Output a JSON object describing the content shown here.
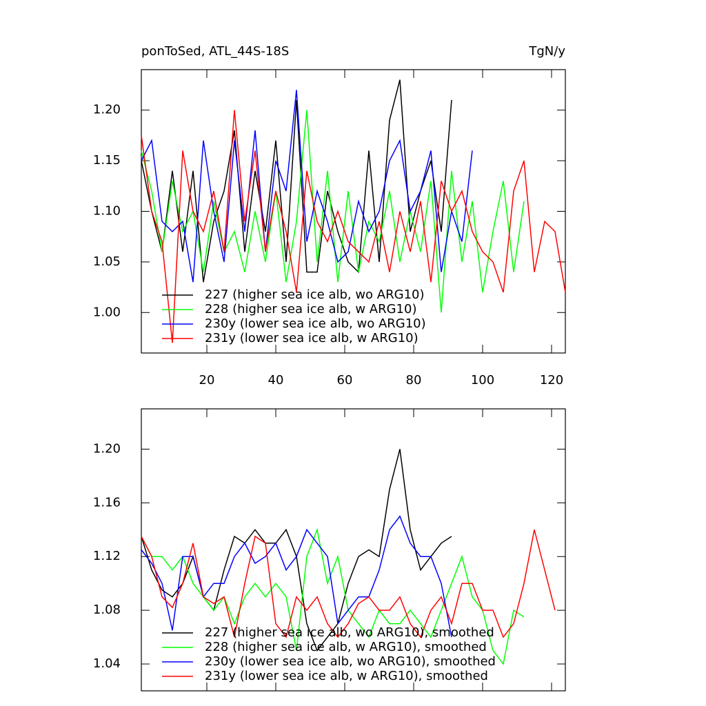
{
  "chart_data": [
    {
      "type": "line",
      "title": "ponToSed, ATL_44S-18S",
      "unit_label": "TgN/y",
      "x": [
        1,
        4,
        7,
        10,
        13,
        16,
        19,
        22,
        25,
        28,
        31,
        34,
        37,
        40,
        43,
        46,
        49,
        52,
        55,
        58,
        61,
        64,
        67,
        70,
        73,
        76,
        79,
        82,
        85,
        88,
        91,
        94,
        97,
        100,
        103,
        106,
        109,
        112,
        115,
        118,
        121,
        124
      ],
      "series": [
        {
          "name": "227 (higher sea ice alb, wo ARG10)",
          "color": "#000000",
          "values": [
            1.15,
            1.1,
            1.06,
            1.14,
            1.06,
            1.14,
            1.03,
            1.09,
            1.12,
            1.18,
            1.06,
            1.14,
            1.08,
            1.17,
            1.05,
            1.21,
            1.04,
            1.04,
            1.12,
            1.08,
            1.05,
            1.04,
            1.16,
            1.05,
            1.19,
            1.23,
            1.08,
            1.12,
            1.15,
            1.08,
            1.21,
            null,
            null,
            null,
            null,
            null,
            null,
            null,
            null,
            null,
            null,
            null
          ]
        },
        {
          "name": "228 (higher sea ice alb, w ARG10)",
          "color": "#00ff00",
          "values": [
            1.16,
            1.12,
            1.06,
            1.13,
            1.08,
            1.1,
            1.04,
            1.11,
            1.06,
            1.08,
            1.04,
            1.1,
            1.05,
            1.12,
            1.03,
            1.09,
            1.2,
            1.05,
            1.14,
            1.03,
            1.12,
            1.04,
            1.09,
            1.07,
            1.12,
            1.05,
            1.1,
            1.06,
            1.13,
            1.0,
            1.14,
            1.05,
            1.11,
            1.02,
            1.08,
            1.13,
            1.04,
            1.11,
            null,
            null,
            null,
            null
          ]
        },
        {
          "name": "230y (lower sea ice alb, wo ARG10)",
          "color": "#0000ff",
          "values": [
            1.15,
            1.17,
            1.09,
            1.08,
            1.09,
            1.03,
            1.17,
            1.1,
            1.05,
            1.17,
            1.08,
            1.18,
            1.06,
            1.15,
            1.12,
            1.22,
            1.07,
            1.12,
            1.09,
            1.05,
            1.06,
            1.11,
            1.08,
            1.1,
            1.15,
            1.17,
            1.1,
            1.12,
            1.16,
            1.04,
            1.1,
            1.07,
            1.16,
            null,
            null,
            null,
            null,
            null,
            null,
            null,
            null,
            null
          ]
        },
        {
          "name": "231y (lower sea ice alb, w ARG10)",
          "color": "#ff0000",
          "values": [
            1.175,
            1.1,
            1.07,
            0.97,
            1.16,
            1.1,
            1.08,
            1.12,
            1.06,
            1.2,
            1.09,
            1.16,
            1.06,
            1.12,
            1.08,
            1.02,
            1.14,
            1.09,
            1.07,
            1.1,
            1.07,
            1.06,
            1.05,
            1.09,
            1.04,
            1.1,
            1.06,
            1.11,
            1.03,
            1.13,
            1.1,
            1.12,
            1.08,
            1.06,
            1.05,
            1.02,
            1.12,
            1.15,
            1.04,
            1.09,
            1.08,
            1.02
          ]
        }
      ],
      "xlim": [
        1,
        124
      ],
      "ylim": [
        0.96,
        1.24
      ],
      "xticks": [
        20,
        40,
        60,
        80,
        100,
        120
      ],
      "xtick_labels": true,
      "yticks": [
        {
          "value": 1.0,
          "label": "1.00"
        },
        1.05,
        {
          "value": 1.1,
          "label": "1.10"
        },
        1.15,
        {
          "value": 1.2,
          "label": "1.20"
        }
      ],
      "legend": "lower left"
    },
    {
      "type": "line",
      "x": [
        1,
        4,
        7,
        10,
        13,
        16,
        19,
        22,
        25,
        28,
        31,
        34,
        37,
        40,
        43,
        46,
        49,
        52,
        55,
        58,
        61,
        64,
        67,
        70,
        73,
        76,
        79,
        82,
        85,
        88,
        91,
        94,
        97,
        100,
        103,
        106,
        109,
        112,
        115,
        118,
        121,
        124
      ],
      "series": [
        {
          "name": "227 (higher sea ice alb, wo ARG10), smoothed",
          "color": "#000000",
          "values": [
            1.135,
            1.11,
            1.095,
            1.09,
            1.1,
            1.12,
            1.09,
            1.08,
            1.11,
            1.135,
            1.13,
            1.14,
            1.13,
            1.13,
            1.14,
            1.12,
            1.07,
            1.05,
            1.06,
            1.07,
            1.1,
            1.12,
            1.125,
            1.12,
            1.17,
            1.2,
            1.14,
            1.11,
            1.12,
            1.13,
            1.135,
            null,
            null,
            null,
            null,
            null,
            null,
            null,
            null,
            null,
            null,
            null
          ]
        },
        {
          "name": "228 (higher sea ice alb, w ARG10), smoothed",
          "color": "#00ff00",
          "values": [
            1.135,
            1.12,
            1.12,
            1.11,
            1.12,
            1.1,
            1.09,
            1.08,
            1.09,
            1.07,
            1.09,
            1.1,
            1.09,
            1.1,
            1.09,
            1.05,
            1.12,
            1.14,
            1.1,
            1.12,
            1.08,
            1.07,
            1.06,
            1.08,
            1.07,
            1.07,
            1.08,
            1.07,
            1.06,
            1.08,
            1.1,
            1.12,
            1.09,
            1.08,
            1.05,
            1.04,
            1.08,
            1.075,
            null,
            null,
            null,
            null
          ]
        },
        {
          "name": "230y (lower sea ice alb, wo ARG10), smoothed",
          "color": "#0000ff",
          "values": [
            1.125,
            1.115,
            1.1,
            1.065,
            1.12,
            1.12,
            1.09,
            1.1,
            1.1,
            1.12,
            1.13,
            1.115,
            1.12,
            1.13,
            1.11,
            1.12,
            1.14,
            1.13,
            1.12,
            1.07,
            1.08,
            1.09,
            1.09,
            1.11,
            1.14,
            1.15,
            1.13,
            1.12,
            1.12,
            1.1,
            1.06,
            null,
            null,
            null,
            null,
            null,
            null,
            null,
            null,
            null,
            null,
            null
          ]
        },
        {
          "name": "231y (lower sea ice alb, w ARG10), smoothed",
          "color": "#ff0000",
          "values": [
            1.135,
            1.12,
            1.09,
            1.082,
            1.1,
            1.13,
            1.09,
            1.085,
            1.09,
            1.06,
            1.1,
            1.135,
            1.13,
            1.07,
            1.06,
            1.09,
            1.08,
            1.09,
            1.07,
            1.06,
            1.07,
            1.085,
            1.09,
            1.08,
            1.08,
            1.09,
            1.07,
            1.06,
            1.08,
            1.09,
            1.07,
            1.1,
            1.1,
            1.08,
            1.08,
            1.06,
            1.07,
            1.1,
            1.14,
            1.11,
            1.08,
            null
          ]
        }
      ],
      "xlim": [
        1,
        124
      ],
      "ylim": [
        1.02,
        1.23
      ],
      "xticks": [
        20,
        40,
        60,
        80,
        100,
        120
      ],
      "xtick_labels": false,
      "yticks": [
        1.04,
        1.08,
        1.12,
        1.16,
        {
          "value": 1.2,
          "label": "1.20"
        }
      ],
      "legend": "lower left"
    }
  ]
}
